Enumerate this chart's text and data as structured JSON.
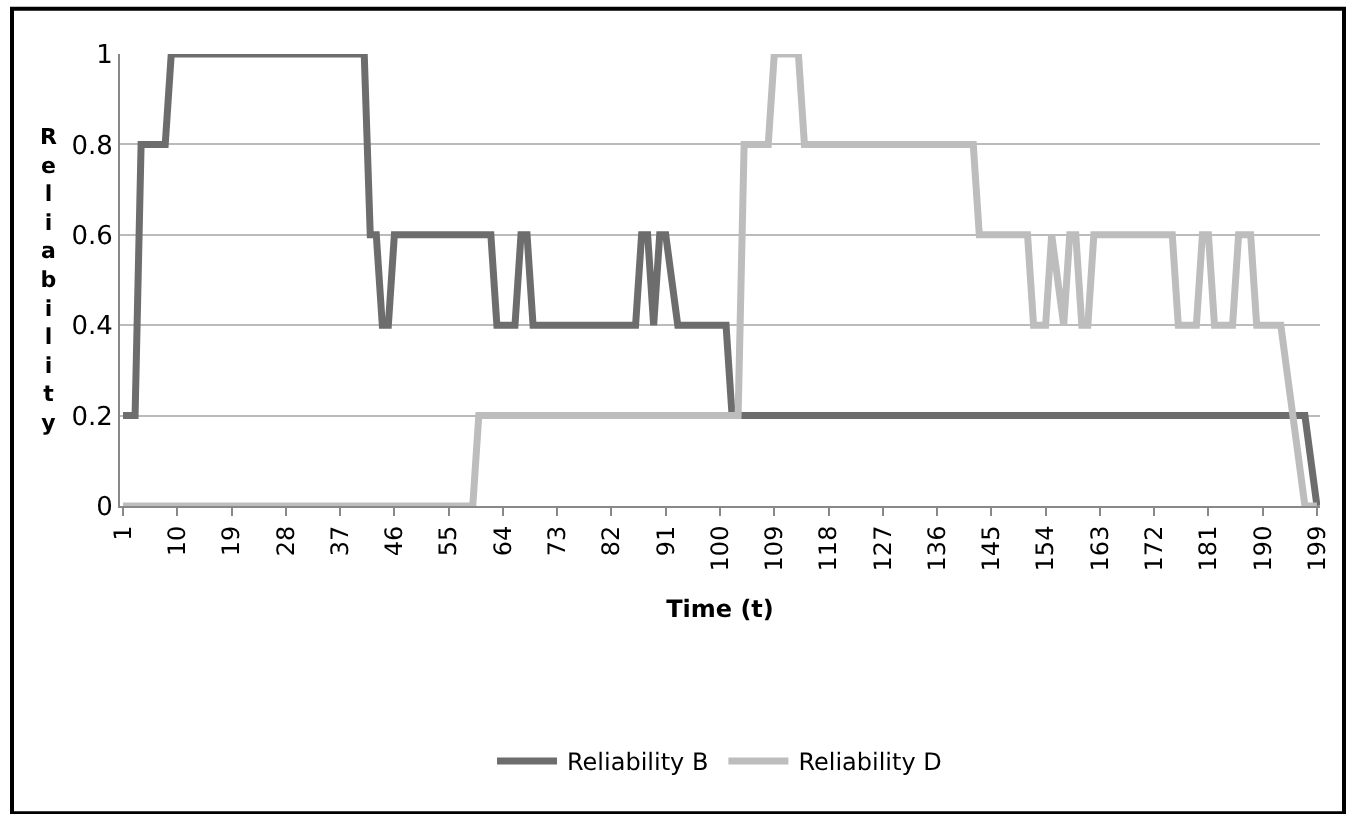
{
  "chart_data": {
    "type": "line",
    "xlabel": "Time (t)",
    "ylabel": "Reliability",
    "xlim": [
      0.5,
      199.5
    ],
    "xticks": [
      1,
      10,
      19,
      28,
      37,
      46,
      55,
      64,
      73,
      82,
      91,
      100,
      109,
      118,
      127,
      136,
      145,
      154,
      163,
      172,
      181,
      190,
      199
    ],
    "ylim": [
      0,
      1
    ],
    "yticks": [
      0,
      0.2,
      0.4,
      0.6,
      0.8,
      1
    ],
    "grid": "y",
    "legend": "bottom",
    "marker": "none",
    "line_style": "solid",
    "series": [
      {
        "name": "Reliability B",
        "color": "#6d6d6d",
        "x": [
          1,
          3,
          4,
          8,
          9,
          41,
          42,
          43,
          44,
          45,
          46,
          62,
          63,
          66,
          67,
          68,
          69,
          86,
          87,
          88,
          89,
          90,
          91,
          93,
          101,
          102,
          197,
          199
        ],
        "values": [
          0.2,
          0.2,
          0.8,
          0.8,
          1,
          1,
          0.6,
          0.6,
          0.4,
          0.4,
          0.6,
          0.6,
          0.4,
          0.4,
          0.6,
          0.6,
          0.4,
          0.4,
          0.6,
          0.6,
          0.4,
          0.6,
          0.6,
          0.4,
          0.4,
          0.2,
          0.2,
          0
        ]
      },
      {
        "name": "Reliability D",
        "color": "#bdbdbd",
        "x": [
          1,
          59,
          60,
          103,
          104,
          108,
          109,
          113,
          114,
          142,
          143,
          151,
          152,
          154,
          155,
          157,
          158,
          159,
          160,
          161,
          162,
          175,
          176,
          179,
          180,
          181,
          182,
          185,
          186,
          188,
          189,
          193,
          195,
          197,
          199
        ],
        "values": [
          0,
          0,
          0.2,
          0.2,
          0.8,
          0.8,
          1,
          1,
          0.8,
          0.8,
          0.6,
          0.6,
          0.4,
          0.4,
          0.6,
          0.4,
          0.6,
          0.6,
          0.4,
          0.4,
          0.6,
          0.6,
          0.4,
          0.4,
          0.6,
          0.6,
          0.4,
          0.4,
          0.6,
          0.6,
          0.4,
          0.4,
          0.2,
          0,
          0
        ]
      }
    ]
  }
}
